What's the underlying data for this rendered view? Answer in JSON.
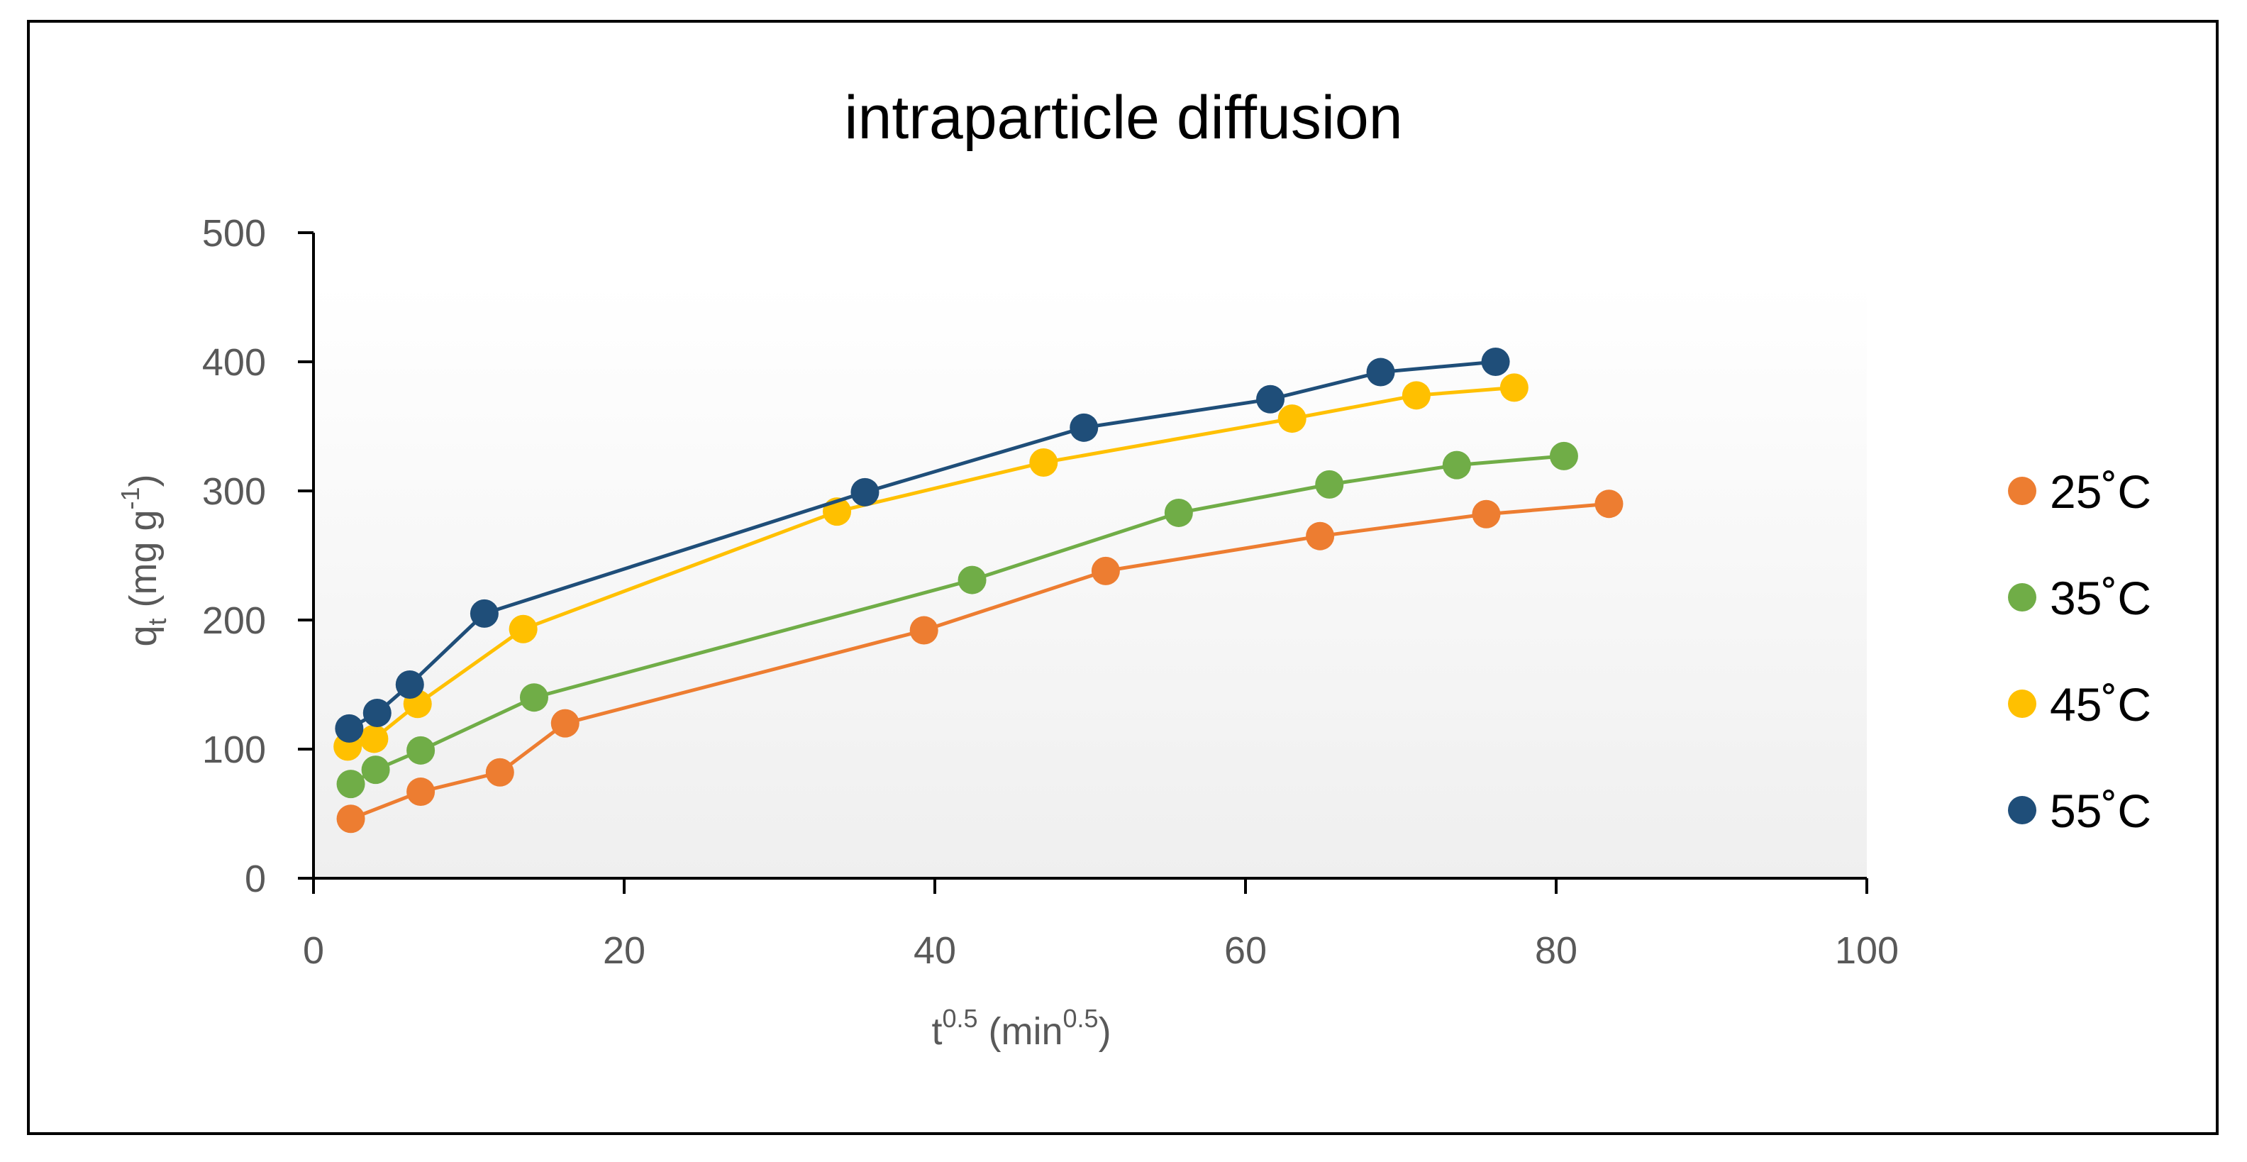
{
  "chart_data": {
    "type": "line",
    "title": "intraparticle diffusion",
    "xlabel": {
      "base": "t",
      "sup": "0.5",
      "rest": " (min",
      "sup2": "0.5",
      "end": ")"
    },
    "ylabel": {
      "base": "q",
      "sub": "t",
      "rest": " (mg g",
      "sup": "-1",
      "end": ")"
    },
    "xlim": [
      0,
      100
    ],
    "ylim": [
      0,
      500
    ],
    "xticks": [
      "0",
      "20",
      "40",
      "60",
      "80",
      "100"
    ],
    "yticks": [
      "0",
      "100",
      "200",
      "300",
      "400",
      "500"
    ],
    "grid": false,
    "legend_position": "right",
    "series": [
      {
        "name": "25˚C",
        "color": "#ED7D31",
        "x": [
          2.4,
          6.9,
          12.0,
          16.2,
          39.3,
          51.0,
          64.8,
          75.5,
          83.4
        ],
        "y": [
          46,
          67,
          82,
          120,
          192,
          238,
          265,
          282,
          290
        ]
      },
      {
        "name": "35˚C",
        "color": "#70AD47",
        "x": [
          2.4,
          4.0,
          6.9,
          14.2,
          42.4,
          55.7,
          65.4,
          73.6,
          80.5
        ],
        "y": [
          73,
          84,
          99,
          140,
          231,
          283,
          305,
          320,
          327
        ]
      },
      {
        "name": "45˚C",
        "color": "#FFC000",
        "x": [
          2.2,
          3.9,
          6.7,
          13.5,
          33.7,
          47.0,
          63.0,
          71.0,
          77.3
        ],
        "y": [
          102,
          108,
          135,
          193,
          284,
          322,
          356,
          374,
          380
        ]
      },
      {
        "name": "55˚C",
        "color": "#1F4E79",
        "x": [
          2.3,
          4.1,
          6.2,
          11.0,
          35.5,
          49.6,
          61.6,
          68.7,
          76.1
        ],
        "y": [
          116,
          128,
          150,
          205,
          299,
          349,
          371,
          392,
          400
        ]
      }
    ]
  }
}
